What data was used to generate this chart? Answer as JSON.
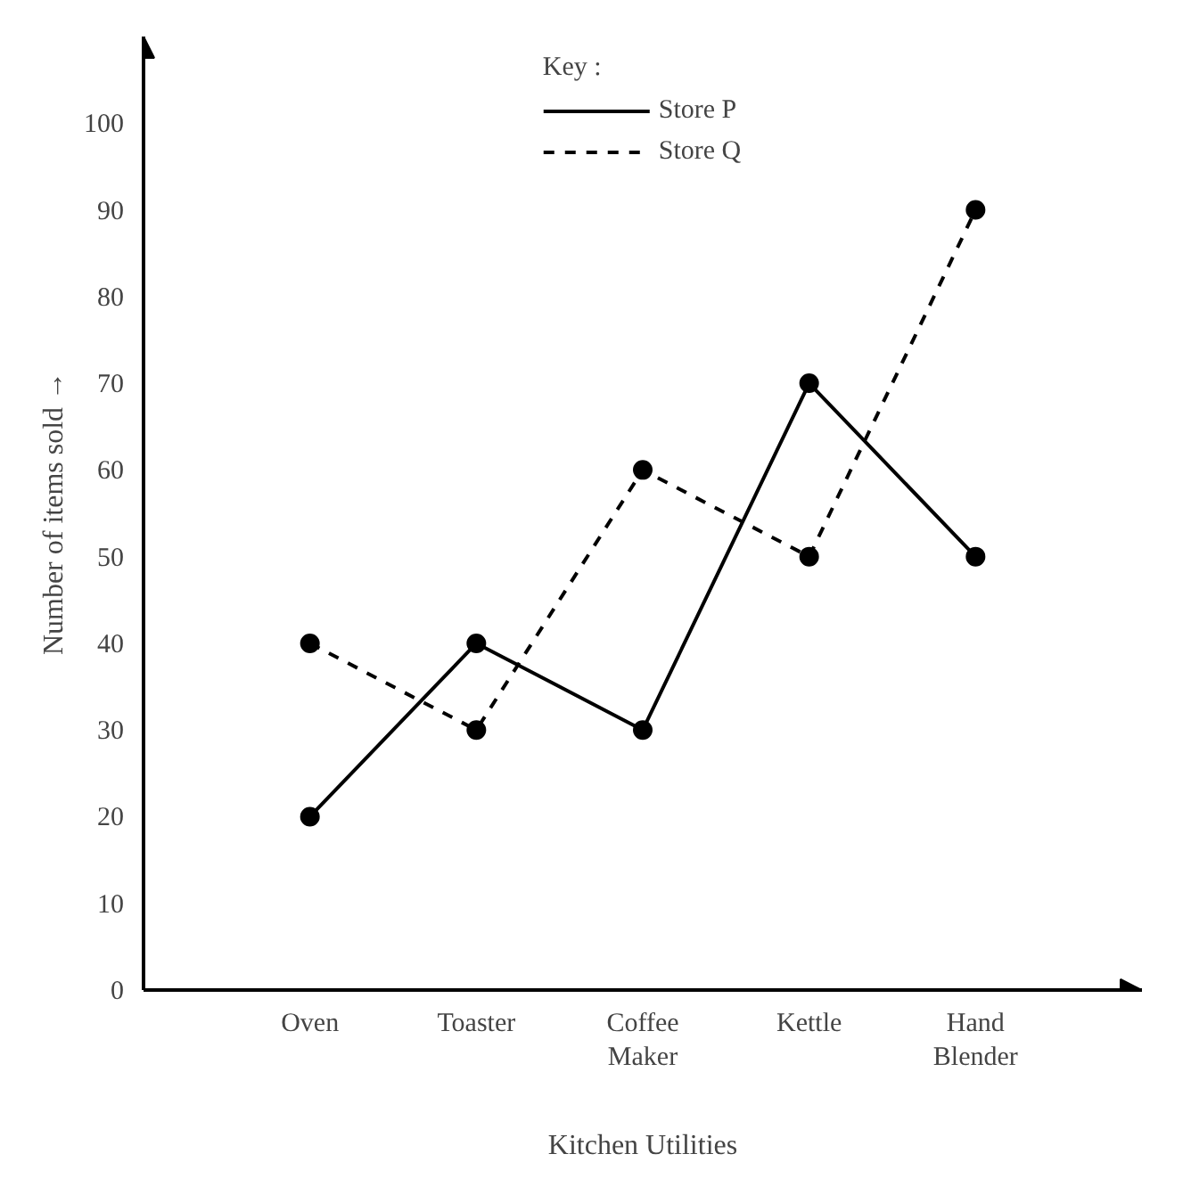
{
  "chart_data": {
    "type": "line",
    "xlabel": "Kitchen Utilities",
    "ylabel": "Number of items sold →",
    "categories": [
      "Oven",
      "Toaster",
      "Coffee\nMaker",
      "Kettle",
      "Hand\nBlender"
    ],
    "series": [
      {
        "name": "Store P",
        "color": "#000000",
        "values": [
          20,
          40,
          30,
          70,
          50
        ],
        "line_style": "solid"
      },
      {
        "name": "Store Q",
        "color": "#000000",
        "values": [
          40,
          30,
          60,
          50,
          90
        ],
        "line_style": "dashed"
      }
    ],
    "ylim": [
      0,
      110
    ],
    "yticks": [
      0,
      10,
      20,
      30,
      40,
      50,
      60,
      70,
      80,
      90,
      100
    ],
    "legend_title": "Key :",
    "legend": "top",
    "marker": "circle",
    "grid": false
  }
}
